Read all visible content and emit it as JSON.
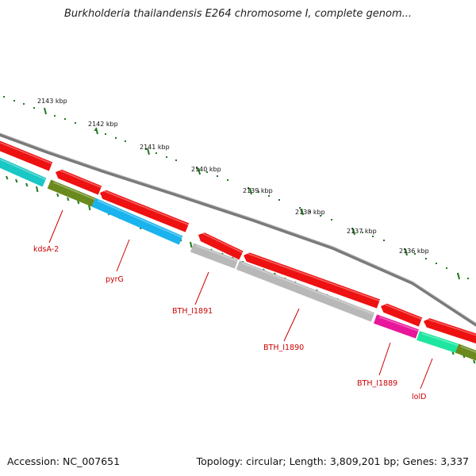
{
  "title": "Burkholderia thailandensis E264 chromosome I, complete genom...",
  "accession": "Accession: NC_007651",
  "summary": "Topology: circular; Length: 3,809,201 bp; Genes: 3,337",
  "scale_labels": [
    "2143 kbp",
    "2142 kbp",
    "2141 kbp",
    "2140 kbp",
    "2139 kbp",
    "2138 kbp",
    "2137 kbp",
    "2136 kbp"
  ],
  "gene_labels": [
    "kdsA-2",
    "pyrG",
    "BTH_I1891",
    "BTH_I1890",
    "BTH_I1889",
    "lolD"
  ],
  "colors": {
    "backbone": "#7a7a7a",
    "cds": "#ee1111",
    "gene_grey": "#b8b8b8",
    "gene_blue": "#1ab3ee",
    "gene_olive": "#6b8a1e",
    "gene_teal": "#19c7c4",
    "gene_pink": "#e8169a",
    "gene_green": "#1ee6a0",
    "tick": "#1f7a1f",
    "label": "#cc0000"
  }
}
